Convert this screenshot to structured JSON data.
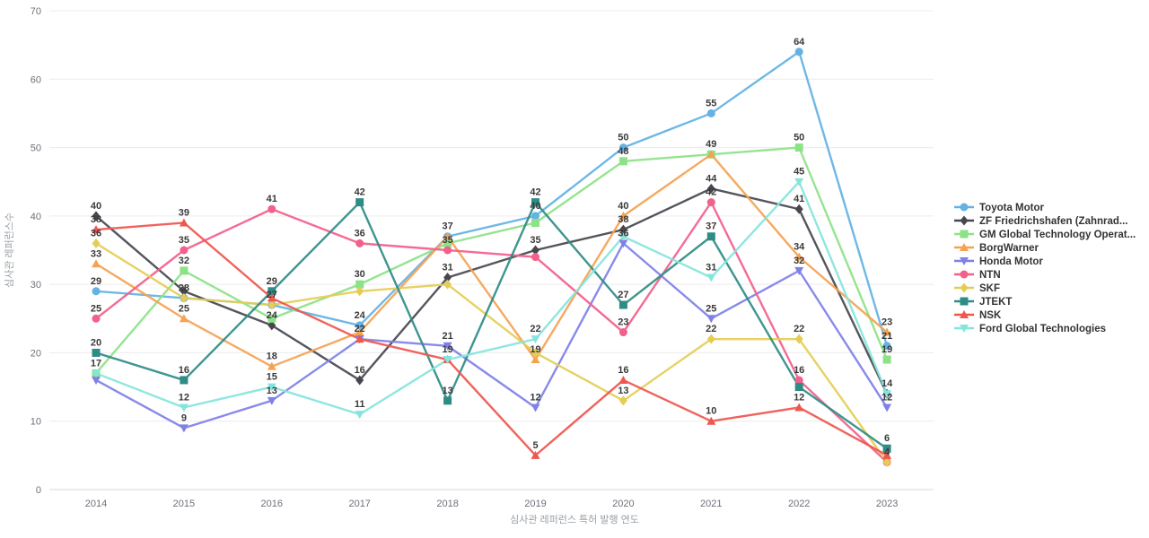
{
  "chart_data": {
    "type": "line",
    "x": [
      "2014",
      "2015",
      "2016",
      "2017",
      "2018",
      "2019",
      "2020",
      "2021",
      "2022",
      "2023"
    ],
    "xlabel": "심사관 레퍼런스 특허 발행 연도",
    "ylabel": "심사관 레퍼런스수",
    "ylim": [
      0,
      70
    ],
    "ytick_interval": 10,
    "yticks": [
      0,
      10,
      20,
      30,
      40,
      50,
      60,
      70
    ],
    "grid": true,
    "legend_position": "right",
    "background": "#ffffff",
    "grid_color": "#ececec",
    "axis_line_color": "#d9d9d9",
    "tick_label_color": "#6e7079",
    "value_label_color": "#3a3a3a",
    "series": [
      {
        "name": "Toyota Motor",
        "color": "#63b2e3",
        "marker": "circle",
        "values": [
          29,
          28,
          27,
          24,
          37,
          40,
          50,
          55,
          64,
          21
        ]
      },
      {
        "name": "ZF Friedrichshafen (Zahnrad...",
        "color": "#47474f",
        "marker": "diamond",
        "values": [
          40,
          29,
          24,
          16,
          31,
          35,
          38,
          44,
          41,
          14
        ]
      },
      {
        "name": "GM Global Technology Operat...",
        "color": "#8de287",
        "marker": "square",
        "values": [
          17,
          32,
          25,
          30,
          36,
          39,
          48,
          49,
          50,
          19
        ]
      },
      {
        "name": "BorgWarner",
        "color": "#f5a252",
        "marker": "triangle-up",
        "values": [
          33,
          25,
          18,
          23,
          37,
          19,
          40,
          49,
          34,
          23
        ]
      },
      {
        "name": "Honda Motor",
        "color": "#7f80e8",
        "marker": "triangle-down",
        "values": [
          16,
          9,
          13,
          22,
          21,
          12,
          36,
          25,
          32,
          12
        ]
      },
      {
        "name": "NTN",
        "color": "#f2608c",
        "marker": "circle",
        "values": [
          25,
          35,
          41,
          36,
          35,
          34,
          23,
          42,
          16,
          4
        ]
      },
      {
        "name": "SKF",
        "color": "#e5cd55",
        "marker": "diamond",
        "values": [
          36,
          28,
          27,
          29,
          30,
          20,
          13,
          22,
          22,
          4
        ]
      },
      {
        "name": "JTEKT",
        "color": "#2e8c87",
        "marker": "square",
        "values": [
          20,
          16,
          29,
          42,
          13,
          42,
          27,
          37,
          15,
          6
        ]
      },
      {
        "name": "NSK",
        "color": "#ef564e",
        "marker": "triangle-up",
        "values": [
          38,
          39,
          28,
          22,
          19,
          5,
          16,
          10,
          12,
          5
        ]
      },
      {
        "name": "Ford Global Technologies",
        "color": "#84e5dc",
        "marker": "triangle-down",
        "values": [
          17,
          12,
          15,
          11,
          19,
          22,
          37,
          31,
          45,
          14
        ]
      }
    ]
  }
}
